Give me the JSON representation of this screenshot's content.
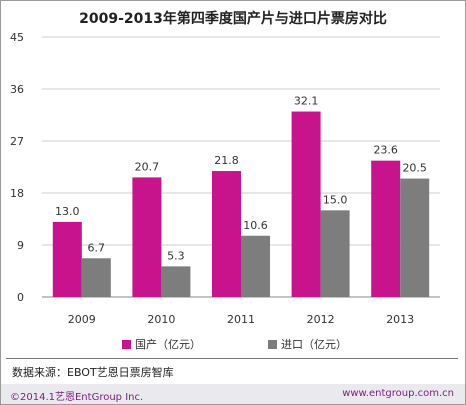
{
  "title": "2009-2013年第四季度国产片与进口片票房对比",
  "chart_data": {
    "type": "bar",
    "categories": [
      "2009",
      "2010",
      "2011",
      "2012",
      "2013"
    ],
    "series": [
      {
        "name": "国产（亿元）",
        "values": [
          13.0,
          20.7,
          21.8,
          32.1,
          23.6
        ],
        "labels": [
          "13.0",
          "20.7",
          "21.8",
          "32.1",
          "23.6"
        ],
        "color": "#c8148c"
      },
      {
        "name": "进口（亿元）",
        "values": [
          6.7,
          5.3,
          10.6,
          15.0,
          20.5
        ],
        "labels": [
          "6.7",
          "5.3",
          "10.6",
          "15.0",
          "20.5"
        ],
        "color": "#7d7d7d"
      }
    ],
    "yticks": [
      "0",
      "9",
      "18",
      "27",
      "36",
      "45"
    ],
    "ylim": [
      0,
      45
    ],
    "grid": "horizontal",
    "legend": "bottom"
  },
  "footer": {
    "source": "数据来源：EBOT艺恩日票房智库",
    "copyright": "©2014.1艺恩EntGroup Inc.",
    "website": "www.entgroup.com.cn"
  }
}
